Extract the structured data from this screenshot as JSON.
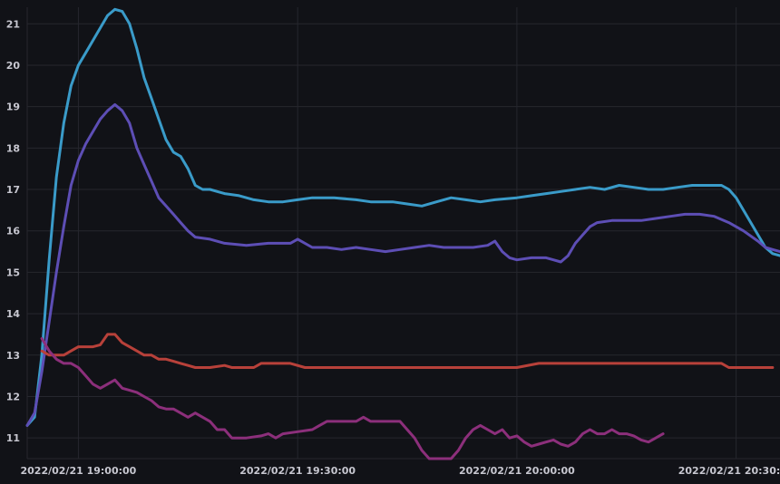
{
  "chart_data": {
    "type": "line",
    "title": "",
    "xlabel": "",
    "ylabel": "",
    "x_range": [
      "2022/02/21 18:53:00",
      "2022/02/21 20:36:00"
    ],
    "ylim": [
      10.5,
      21.4
    ],
    "grid": true,
    "legend": "none",
    "y_ticks": [
      11,
      12,
      13,
      14,
      15,
      16,
      17,
      18,
      19,
      20,
      21
    ],
    "x_ticks": [
      {
        "value": "2022/02/21 19:00:00",
        "label": "2022/02/21 19:00:00"
      },
      {
        "value": "2022/02/21 19:30:00",
        "label": "2022/02/21 19:30:00"
      },
      {
        "value": "2022/02/21 20:00:00",
        "label": "2022/02/21 20:00:00"
      },
      {
        "value": "2022/02/21 20:30:00",
        "label": "2022/02/21 20:30:00"
      }
    ],
    "series": [
      {
        "color": "#3a9bc9",
        "points": [
          [
            "18:53:00",
            11.3
          ],
          [
            "18:54:00",
            11.5
          ],
          [
            "18:55:00",
            13.0
          ],
          [
            "18:56:00",
            15.3
          ],
          [
            "18:57:00",
            17.3
          ],
          [
            "18:58:00",
            18.6
          ],
          [
            "18:59:00",
            19.5
          ],
          [
            "19:00:00",
            20.0
          ],
          [
            "19:01:00",
            20.3
          ],
          [
            "19:02:00",
            20.6
          ],
          [
            "19:03:00",
            20.9
          ],
          [
            "19:04:00",
            21.2
          ],
          [
            "19:05:00",
            21.35
          ],
          [
            "19:06:00",
            21.3
          ],
          [
            "19:07:00",
            21.0
          ],
          [
            "19:08:00",
            20.4
          ],
          [
            "19:09:00",
            19.7
          ],
          [
            "19:10:00",
            19.2
          ],
          [
            "19:11:00",
            18.7
          ],
          [
            "19:12:00",
            18.2
          ],
          [
            "19:13:00",
            17.9
          ],
          [
            "19:14:00",
            17.8
          ],
          [
            "19:15:00",
            17.5
          ],
          [
            "19:16:00",
            17.1
          ],
          [
            "19:17:00",
            17.0
          ],
          [
            "19:18:00",
            17.0
          ],
          [
            "19:19:00",
            16.95
          ],
          [
            "19:20:00",
            16.9
          ],
          [
            "19:22:00",
            16.85
          ],
          [
            "19:24:00",
            16.75
          ],
          [
            "19:26:00",
            16.7
          ],
          [
            "19:28:00",
            16.7
          ],
          [
            "19:30:00",
            16.75
          ],
          [
            "19:32:00",
            16.8
          ],
          [
            "19:35:00",
            16.8
          ],
          [
            "19:38:00",
            16.75
          ],
          [
            "19:40:00",
            16.7
          ],
          [
            "19:43:00",
            16.7
          ],
          [
            "19:45:00",
            16.65
          ],
          [
            "19:47:00",
            16.6
          ],
          [
            "19:49:00",
            16.7
          ],
          [
            "19:51:00",
            16.8
          ],
          [
            "19:53:00",
            16.75
          ],
          [
            "19:55:00",
            16.7
          ],
          [
            "19:57:00",
            16.75
          ],
          [
            "20:00:00",
            16.8
          ],
          [
            "20:02:00",
            16.85
          ],
          [
            "20:04:00",
            16.9
          ],
          [
            "20:06:00",
            16.95
          ],
          [
            "20:08:00",
            17.0
          ],
          [
            "20:10:00",
            17.05
          ],
          [
            "20:12:00",
            17.0
          ],
          [
            "20:14:00",
            17.1
          ],
          [
            "20:16:00",
            17.05
          ],
          [
            "20:18:00",
            17.0
          ],
          [
            "20:20:00",
            17.0
          ],
          [
            "20:22:00",
            17.05
          ],
          [
            "20:24:00",
            17.1
          ],
          [
            "20:26:00",
            17.1
          ],
          [
            "20:28:00",
            17.1
          ],
          [
            "20:29:00",
            17.0
          ],
          [
            "20:30:00",
            16.8
          ],
          [
            "20:31:00",
            16.5
          ],
          [
            "20:32:00",
            16.2
          ],
          [
            "20:33:00",
            15.9
          ],
          [
            "20:34:00",
            15.6
          ],
          [
            "20:35:00",
            15.45
          ],
          [
            "20:36:00",
            15.4
          ]
        ]
      },
      {
        "color": "#5d4eb5",
        "points": [
          [
            "18:53:00",
            11.3
          ],
          [
            "18:54:00",
            11.6
          ],
          [
            "18:55:00",
            12.6
          ],
          [
            "18:56:00",
            13.8
          ],
          [
            "18:57:00",
            15.0
          ],
          [
            "18:58:00",
            16.1
          ],
          [
            "18:59:00",
            17.1
          ],
          [
            "19:00:00",
            17.7
          ],
          [
            "19:01:00",
            18.1
          ],
          [
            "19:02:00",
            18.4
          ],
          [
            "19:03:00",
            18.7
          ],
          [
            "19:04:00",
            18.9
          ],
          [
            "19:05:00",
            19.05
          ],
          [
            "19:06:00",
            18.9
          ],
          [
            "19:07:00",
            18.6
          ],
          [
            "19:08:00",
            18.0
          ],
          [
            "19:09:00",
            17.6
          ],
          [
            "19:10:00",
            17.2
          ],
          [
            "19:11:00",
            16.8
          ],
          [
            "19:12:00",
            16.6
          ],
          [
            "19:13:00",
            16.4
          ],
          [
            "19:14:00",
            16.2
          ],
          [
            "19:15:00",
            16.0
          ],
          [
            "19:16:00",
            15.85
          ],
          [
            "19:18:00",
            15.8
          ],
          [
            "19:20:00",
            15.7
          ],
          [
            "19:23:00",
            15.65
          ],
          [
            "19:26:00",
            15.7
          ],
          [
            "19:29:00",
            15.7
          ],
          [
            "19:30:00",
            15.8
          ],
          [
            "19:32:00",
            15.6
          ],
          [
            "19:34:00",
            15.6
          ],
          [
            "19:36:00",
            15.55
          ],
          [
            "19:38:00",
            15.6
          ],
          [
            "19:40:00",
            15.55
          ],
          [
            "19:42:00",
            15.5
          ],
          [
            "19:44:00",
            15.55
          ],
          [
            "19:46:00",
            15.6
          ],
          [
            "19:48:00",
            15.65
          ],
          [
            "19:50:00",
            15.6
          ],
          [
            "19:52:00",
            15.6
          ],
          [
            "19:54:00",
            15.6
          ],
          [
            "19:56:00",
            15.65
          ],
          [
            "19:57:00",
            15.75
          ],
          [
            "19:58:00",
            15.5
          ],
          [
            "19:59:00",
            15.35
          ],
          [
            "20:00:00",
            15.3
          ],
          [
            "20:02:00",
            15.35
          ],
          [
            "20:04:00",
            15.35
          ],
          [
            "20:05:00",
            15.3
          ],
          [
            "20:06:00",
            15.25
          ],
          [
            "20:07:00",
            15.4
          ],
          [
            "20:08:00",
            15.7
          ],
          [
            "20:09:00",
            15.9
          ],
          [
            "20:10:00",
            16.1
          ],
          [
            "20:11:00",
            16.2
          ],
          [
            "20:13:00",
            16.25
          ],
          [
            "20:15:00",
            16.25
          ],
          [
            "20:17:00",
            16.25
          ],
          [
            "20:19:00",
            16.3
          ],
          [
            "20:21:00",
            16.35
          ],
          [
            "20:23:00",
            16.4
          ],
          [
            "20:25:00",
            16.4
          ],
          [
            "20:27:00",
            16.35
          ],
          [
            "20:29:00",
            16.2
          ],
          [
            "20:31:00",
            16.0
          ],
          [
            "20:33:00",
            15.75
          ],
          [
            "20:34:00",
            15.6
          ],
          [
            "20:35:00",
            15.55
          ],
          [
            "20:36:00",
            15.5
          ]
        ]
      },
      {
        "color": "#b8413a",
        "points": [
          [
            "18:55:00",
            13.1
          ],
          [
            "18:56:00",
            13.0
          ],
          [
            "18:57:00",
            13.0
          ],
          [
            "18:58:00",
            13.0
          ],
          [
            "18:59:00",
            13.1
          ],
          [
            "19:00:00",
            13.2
          ],
          [
            "19:01:00",
            13.2
          ],
          [
            "19:02:00",
            13.2
          ],
          [
            "19:03:00",
            13.25
          ],
          [
            "19:04:00",
            13.5
          ],
          [
            "19:05:00",
            13.5
          ],
          [
            "19:06:00",
            13.3
          ],
          [
            "19:07:00",
            13.2
          ],
          [
            "19:08:00",
            13.1
          ],
          [
            "19:09:00",
            13.0
          ],
          [
            "19:10:00",
            13.0
          ],
          [
            "19:11:00",
            12.9
          ],
          [
            "19:12:00",
            12.9
          ],
          [
            "19:13:00",
            12.85
          ],
          [
            "19:14:00",
            12.8
          ],
          [
            "19:15:00",
            12.75
          ],
          [
            "19:16:00",
            12.7
          ],
          [
            "19:18:00",
            12.7
          ],
          [
            "19:20:00",
            12.75
          ],
          [
            "19:21:00",
            12.7
          ],
          [
            "19:24:00",
            12.7
          ],
          [
            "19:25:00",
            12.8
          ],
          [
            "19:27:00",
            12.8
          ],
          [
            "19:29:00",
            12.8
          ],
          [
            "19:31:00",
            12.7
          ],
          [
            "19:35:00",
            12.7
          ],
          [
            "19:40:00",
            12.7
          ],
          [
            "19:50:00",
            12.7
          ],
          [
            "20:00:00",
            12.7
          ],
          [
            "20:03:00",
            12.8
          ],
          [
            "20:10:00",
            12.8
          ],
          [
            "20:20:00",
            12.8
          ],
          [
            "20:28:00",
            12.8
          ],
          [
            "20:29:00",
            12.7
          ],
          [
            "20:33:00",
            12.7
          ],
          [
            "20:35:00",
            12.7
          ]
        ]
      },
      {
        "color": "#8c2f7b",
        "points": [
          [
            "18:55:00",
            13.4
          ],
          [
            "18:56:00",
            13.1
          ],
          [
            "18:57:00",
            12.9
          ],
          [
            "18:58:00",
            12.8
          ],
          [
            "18:59:00",
            12.8
          ],
          [
            "19:00:00",
            12.7
          ],
          [
            "19:01:00",
            12.5
          ],
          [
            "19:02:00",
            12.3
          ],
          [
            "19:03:00",
            12.2
          ],
          [
            "19:04:00",
            12.3
          ],
          [
            "19:05:00",
            12.4
          ],
          [
            "19:06:00",
            12.2
          ],
          [
            "19:07:00",
            12.15
          ],
          [
            "19:08:00",
            12.1
          ],
          [
            "19:09:00",
            12.0
          ],
          [
            "19:10:00",
            11.9
          ],
          [
            "19:11:00",
            11.75
          ],
          [
            "19:12:00",
            11.7
          ],
          [
            "19:13:00",
            11.7
          ],
          [
            "19:14:00",
            11.6
          ],
          [
            "19:15:00",
            11.5
          ],
          [
            "19:16:00",
            11.6
          ],
          [
            "19:17:00",
            11.5
          ],
          [
            "19:18:00",
            11.4
          ],
          [
            "19:19:00",
            11.2
          ],
          [
            "19:20:00",
            11.2
          ],
          [
            "19:21:00",
            11.0
          ],
          [
            "19:23:00",
            11.0
          ],
          [
            "19:25:00",
            11.05
          ],
          [
            "19:26:00",
            11.1
          ],
          [
            "19:27:00",
            11.0
          ],
          [
            "19:28:00",
            11.1
          ],
          [
            "19:30:00",
            11.15
          ],
          [
            "19:32:00",
            11.2
          ],
          [
            "19:33:00",
            11.3
          ],
          [
            "19:34:00",
            11.4
          ],
          [
            "19:36:00",
            11.4
          ],
          [
            "19:38:00",
            11.4
          ],
          [
            "19:39:00",
            11.5
          ],
          [
            "19:40:00",
            11.4
          ],
          [
            "19:42:00",
            11.4
          ],
          [
            "19:44:00",
            11.4
          ],
          [
            "19:45:00",
            11.2
          ],
          [
            "19:46:00",
            11.0
          ],
          [
            "19:47:00",
            10.7
          ],
          [
            "19:48:00",
            10.5
          ],
          [
            "19:51:00",
            10.5
          ],
          [
            "19:52:00",
            10.7
          ],
          [
            "19:53:00",
            11.0
          ],
          [
            "19:54:00",
            11.2
          ],
          [
            "19:55:00",
            11.3
          ],
          [
            "19:56:00",
            11.2
          ],
          [
            "19:57:00",
            11.1
          ],
          [
            "19:58:00",
            11.2
          ],
          [
            "19:59:00",
            11.0
          ],
          [
            "20:00:00",
            11.05
          ],
          [
            "20:01:00",
            10.9
          ],
          [
            "20:02:00",
            10.8
          ],
          [
            "20:03:00",
            10.85
          ],
          [
            "20:04:00",
            10.9
          ],
          [
            "20:05:00",
            10.95
          ],
          [
            "20:06:00",
            10.85
          ],
          [
            "20:07:00",
            10.8
          ],
          [
            "20:08:00",
            10.9
          ],
          [
            "20:09:00",
            11.1
          ],
          [
            "20:10:00",
            11.2
          ],
          [
            "20:11:00",
            11.1
          ],
          [
            "20:12:00",
            11.1
          ],
          [
            "20:13:00",
            11.2
          ],
          [
            "20:14:00",
            11.1
          ],
          [
            "20:15:00",
            11.1
          ],
          [
            "20:16:00",
            11.05
          ],
          [
            "20:17:00",
            10.95
          ],
          [
            "20:18:00",
            10.9
          ],
          [
            "20:19:00",
            11.0
          ],
          [
            "20:20:00",
            11.1
          ]
        ]
      }
    ]
  }
}
